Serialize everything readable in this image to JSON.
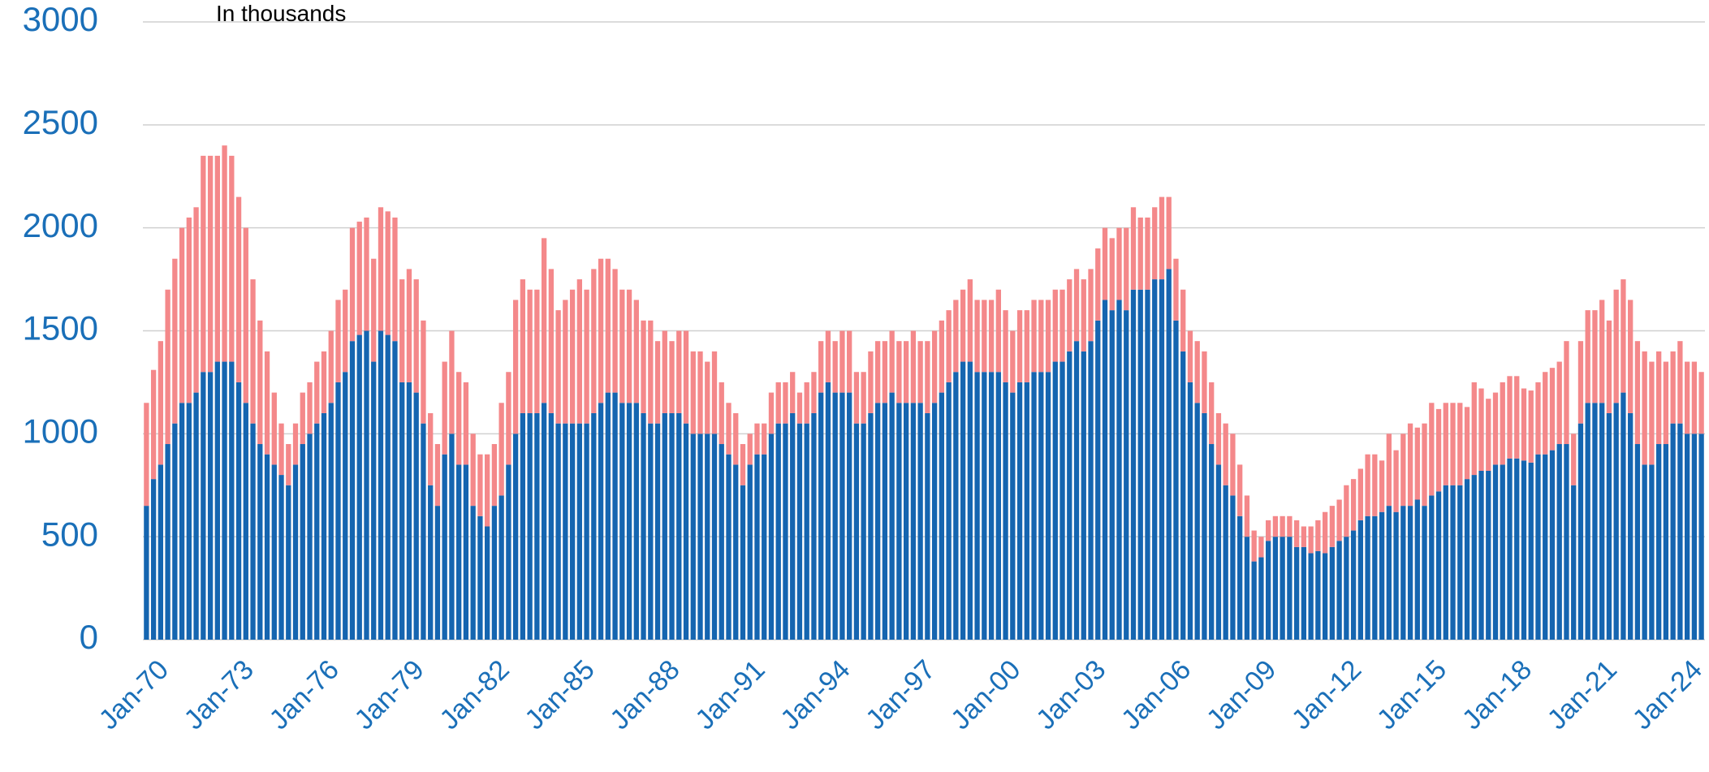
{
  "chart_data": {
    "type": "stacked_bar",
    "subtitle": "In thousands",
    "categories": [
      "Jan-70",
      null,
      null,
      null,
      null,
      null,
      null,
      null,
      null,
      null,
      null,
      null,
      "Jan-73",
      null,
      null,
      null,
      null,
      null,
      null,
      null,
      null,
      null,
      null,
      null,
      "Jan-76",
      null,
      null,
      null,
      null,
      null,
      null,
      null,
      null,
      null,
      null,
      null,
      "Jan-79",
      null,
      null,
      null,
      null,
      null,
      null,
      null,
      null,
      null,
      null,
      null,
      "Jan-82",
      null,
      null,
      null,
      null,
      null,
      null,
      null,
      null,
      null,
      null,
      null,
      "Jan-85",
      null,
      null,
      null,
      null,
      null,
      null,
      null,
      null,
      null,
      null,
      null,
      "Jan-88",
      null,
      null,
      null,
      null,
      null,
      null,
      null,
      null,
      null,
      null,
      null,
      "Jan-91",
      null,
      null,
      null,
      null,
      null,
      null,
      null,
      null,
      null,
      null,
      null,
      "Jan-94",
      null,
      null,
      null,
      null,
      null,
      null,
      null,
      null,
      null,
      null,
      null,
      "Jan-97",
      null,
      null,
      null,
      null,
      null,
      null,
      null,
      null,
      null,
      null,
      null,
      "Jan-00",
      null,
      null,
      null,
      null,
      null,
      null,
      null,
      null,
      null,
      null,
      null,
      "Jan-03",
      null,
      null,
      null,
      null,
      null,
      null,
      null,
      null,
      null,
      null,
      null,
      "Jan-06",
      null,
      null,
      null,
      null,
      null,
      null,
      null,
      null,
      null,
      null,
      null,
      "Jan-09",
      null,
      null,
      null,
      null,
      null,
      null,
      null,
      null,
      null,
      null,
      null,
      "Jan-12",
      null,
      null,
      null,
      null,
      null,
      null,
      null,
      null,
      null,
      null,
      null,
      "Jan-15",
      null,
      null,
      null,
      null,
      null,
      null,
      null,
      null,
      null,
      null,
      null,
      "Jan-18",
      null,
      null,
      null,
      null,
      null,
      null,
      null,
      null,
      null,
      null,
      null,
      "Jan-21",
      null,
      null,
      null,
      null,
      null,
      null,
      null,
      null,
      null,
      null,
      null,
      "Jan-24",
      null,
      null,
      null
    ],
    "series": [
      {
        "color": "#1565b0",
        "values": [
          650,
          780,
          850,
          950,
          1050,
          1150,
          1150,
          1200,
          1300,
          1300,
          1350,
          1350,
          1350,
          1250,
          1150,
          1050,
          950,
          900,
          850,
          800,
          750,
          850,
          950,
          1000,
          1050,
          1100,
          1150,
          1250,
          1300,
          1450,
          1480,
          1500,
          1350,
          1500,
          1480,
          1450,
          1250,
          1250,
          1200,
          1050,
          750,
          650,
          900,
          1000,
          850,
          850,
          650,
          600,
          550,
          650,
          700,
          850,
          1000,
          1100,
          1100,
          1100,
          1150,
          1100,
          1050,
          1050,
          1050,
          1050,
          1050,
          1100,
          1150,
          1200,
          1200,
          1150,
          1150,
          1150,
          1100,
          1050,
          1050,
          1100,
          1100,
          1100,
          1050,
          1000,
          1000,
          1000,
          1000,
          950,
          900,
          850,
          750,
          850,
          900,
          900,
          1000,
          1050,
          1050,
          1100,
          1050,
          1050,
          1100,
          1200,
          1250,
          1200,
          1200,
          1200,
          1050,
          1050,
          1100,
          1150,
          1150,
          1200,
          1150,
          1150,
          1150,
          1150,
          1100,
          1150,
          1200,
          1250,
          1300,
          1350,
          1350,
          1300,
          1300,
          1300,
          1300,
          1250,
          1200,
          1250,
          1250,
          1300,
          1300,
          1300,
          1350,
          1350,
          1400,
          1450,
          1400,
          1450,
          1550,
          1650,
          1600,
          1650,
          1600,
          1700,
          1700,
          1700,
          1750,
          1750,
          1800,
          1550,
          1400,
          1250,
          1150,
          1100,
          950,
          850,
          750,
          700,
          600,
          500,
          380,
          400,
          480,
          500,
          500,
          500,
          450,
          450,
          420,
          430,
          420,
          450,
          480,
          500,
          530,
          580,
          600,
          600,
          620,
          650,
          620,
          650,
          650,
          680,
          650,
          700,
          720,
          750,
          750,
          750,
          780,
          800,
          820,
          820,
          850,
          850,
          880,
          880,
          870,
          860,
          900,
          900,
          920,
          950,
          950,
          750,
          1050,
          1150,
          1150,
          1150,
          1100,
          1150,
          1200,
          1100,
          950,
          850,
          850,
          950,
          950,
          1050,
          1050,
          1000,
          1000,
          1000
        ]
      },
      {
        "color": "#f4888a",
        "values": [
          500,
          530,
          600,
          750,
          800,
          850,
          900,
          900,
          1050,
          1050,
          1000,
          1050,
          1000,
          900,
          850,
          700,
          600,
          500,
          350,
          250,
          200,
          200,
          250,
          250,
          300,
          300,
          350,
          400,
          400,
          550,
          550,
          550,
          500,
          600,
          600,
          600,
          500,
          550,
          550,
          500,
          350,
          300,
          450,
          500,
          450,
          400,
          350,
          300,
          350,
          300,
          450,
          450,
          650,
          650,
          600,
          600,
          800,
          700,
          550,
          600,
          650,
          700,
          650,
          700,
          700,
          650,
          600,
          550,
          550,
          500,
          450,
          500,
          400,
          400,
          350,
          400,
          450,
          400,
          400,
          350,
          400,
          300,
          250,
          250,
          200,
          150,
          150,
          150,
          200,
          200,
          200,
          200,
          150,
          200,
          200,
          250,
          250,
          250,
          300,
          300,
          250,
          250,
          300,
          300,
          300,
          300,
          300,
          300,
          350,
          300,
          350,
          350,
          350,
          350,
          350,
          350,
          400,
          350,
          350,
          350,
          400,
          350,
          300,
          350,
          350,
          350,
          350,
          350,
          350,
          350,
          350,
          350,
          350,
          350,
          350,
          350,
          350,
          350,
          400,
          400,
          350,
          350,
          350,
          400,
          350,
          300,
          300,
          250,
          300,
          300,
          300,
          250,
          300,
          300,
          250,
          200,
          150,
          100,
          100,
          100,
          100,
          100,
          130,
          100,
          130,
          150,
          200,
          200,
          200,
          250,
          250,
          250,
          300,
          300,
          250,
          350,
          300,
          350,
          400,
          350,
          400,
          450,
          400,
          400,
          400,
          400,
          350,
          450,
          400,
          350,
          350,
          400,
          400,
          400,
          350,
          350,
          350,
          400,
          400,
          400,
          500,
          250,
          400,
          450,
          450,
          500,
          450,
          550,
          550,
          550,
          500,
          550,
          500,
          450,
          400,
          350,
          400,
          350,
          350,
          300
        ]
      }
    ],
    "ylim": [
      0,
      3000
    ],
    "yticks": [
      0,
      500,
      1000,
      1500,
      2000,
      2500,
      3000
    ],
    "grid": true
  }
}
